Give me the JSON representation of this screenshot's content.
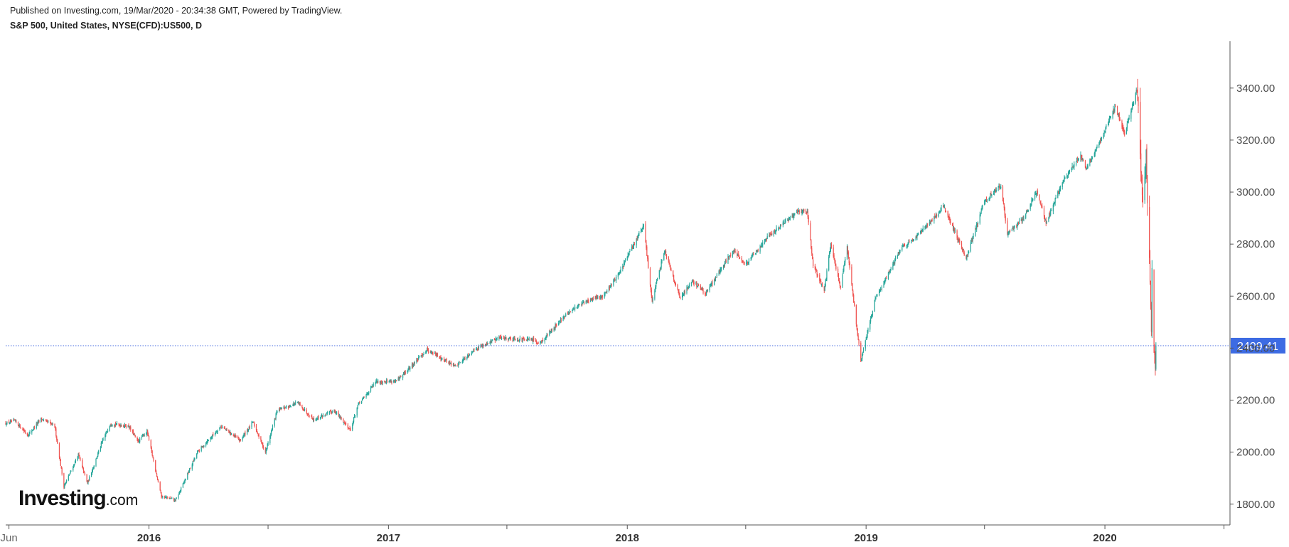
{
  "header": {
    "published": "Published on Investing.com, 19/Mar/2020 - 20:34:38 GMT, Powered by TradingView.",
    "symbol": "S&P 500, United States, NYSE(CFD):US500, D"
  },
  "logo": {
    "brand": "Investing",
    "tld": ".com"
  },
  "colors": {
    "up": "#26a69a",
    "down": "#ef5350",
    "last_price_line": "#4a6ee0",
    "last_price_badge": "#3d6be3",
    "axis": "#555555"
  },
  "chart_data": {
    "type": "candlestick",
    "title": "S&P 500, United States, NYSE(CFD):US500, D",
    "x_range": [
      "2015-05-27",
      "2020-07-08"
    ],
    "ylim": [
      1720,
      3580
    ],
    "y_ticks": [
      1800,
      2000,
      2200,
      2400,
      2600,
      2800,
      3000,
      3200,
      3400
    ],
    "y_tick_labels": [
      "1800.00",
      "2000.00",
      "2200.00",
      "2400.00",
      "2600.00",
      "2800.00",
      "3000.00",
      "3200.00",
      "3400.00"
    ],
    "x_ticks": [
      {
        "date": "2015-06-01",
        "label": "Jun",
        "kind": "month"
      },
      {
        "date": "2016-01-01",
        "label": "2016",
        "kind": "year"
      },
      {
        "date": "2016-07-01",
        "label": "",
        "kind": "minor"
      },
      {
        "date": "2017-01-01",
        "label": "2017",
        "kind": "year"
      },
      {
        "date": "2017-07-01",
        "label": "",
        "kind": "minor"
      },
      {
        "date": "2018-01-01",
        "label": "2018",
        "kind": "year"
      },
      {
        "date": "2018-07-01",
        "label": "",
        "kind": "minor"
      },
      {
        "date": "2019-01-01",
        "label": "2019",
        "kind": "year"
      },
      {
        "date": "2019-07-01",
        "label": "",
        "kind": "minor"
      },
      {
        "date": "2020-01-01",
        "label": "2020",
        "kind": "year"
      },
      {
        "date": "2020-07-01",
        "label": "",
        "kind": "minor"
      }
    ],
    "last_price": 2409.41,
    "last_price_label": "2409.41",
    "grid": false,
    "price_path": [
      [
        "2015-05-27",
        2110
      ],
      [
        "2015-06-10",
        2120
      ],
      [
        "2015-06-30",
        2065
      ],
      [
        "2015-07-20",
        2128
      ],
      [
        "2015-08-10",
        2100
      ],
      [
        "2015-08-24",
        1868
      ],
      [
        "2015-09-15",
        1990
      ],
      [
        "2015-09-29",
        1880
      ],
      [
        "2015-10-20",
        2030
      ],
      [
        "2015-11-03",
        2110
      ],
      [
        "2015-12-01",
        2100
      ],
      [
        "2015-12-15",
        2040
      ],
      [
        "2015-12-29",
        2080
      ],
      [
        "2016-01-20",
        1830
      ],
      [
        "2016-02-11",
        1815
      ],
      [
        "2016-03-15",
        2000
      ],
      [
        "2016-04-20",
        2100
      ],
      [
        "2016-05-19",
        2045
      ],
      [
        "2016-06-08",
        2115
      ],
      [
        "2016-06-27",
        2000
      ],
      [
        "2016-07-15",
        2160
      ],
      [
        "2016-08-15",
        2190
      ],
      [
        "2016-09-09",
        2125
      ],
      [
        "2016-10-10",
        2160
      ],
      [
        "2016-11-04",
        2085
      ],
      [
        "2016-11-15",
        2180
      ],
      [
        "2016-12-13",
        2270
      ],
      [
        "2017-01-15",
        2275
      ],
      [
        "2017-03-01",
        2395
      ],
      [
        "2017-04-13",
        2330
      ],
      [
        "2017-05-15",
        2400
      ],
      [
        "2017-06-20",
        2440
      ],
      [
        "2017-08-10",
        2430
      ],
      [
        "2017-08-21",
        2420
      ],
      [
        "2017-09-20",
        2505
      ],
      [
        "2017-10-20",
        2570
      ],
      [
        "2017-11-25",
        2600
      ],
      [
        "2017-12-20",
        2690
      ],
      [
        "2018-01-26",
        2872
      ],
      [
        "2018-02-08",
        2580
      ],
      [
        "2018-02-27",
        2780
      ],
      [
        "2018-03-23",
        2590
      ],
      [
        "2018-04-10",
        2660
      ],
      [
        "2018-05-01",
        2610
      ],
      [
        "2018-06-12",
        2780
      ],
      [
        "2018-07-01",
        2720
      ],
      [
        "2018-08-01",
        2820
      ],
      [
        "2018-09-20",
        2930
      ],
      [
        "2018-10-03",
        2925
      ],
      [
        "2018-10-12",
        2720
      ],
      [
        "2018-10-29",
        2620
      ],
      [
        "2018-11-08",
        2800
      ],
      [
        "2018-11-23",
        2630
      ],
      [
        "2018-12-03",
        2790
      ],
      [
        "2018-12-24",
        2350
      ],
      [
        "2019-01-15",
        2590
      ],
      [
        "2019-02-25",
        2790
      ],
      [
        "2019-03-20",
        2830
      ],
      [
        "2019-04-30",
        2945
      ],
      [
        "2019-06-03",
        2745
      ],
      [
        "2019-06-30",
        2960
      ],
      [
        "2019-07-26",
        3025
      ],
      [
        "2019-08-05",
        2840
      ],
      [
        "2019-08-30",
        2900
      ],
      [
        "2019-09-19",
        3005
      ],
      [
        "2019-10-03",
        2880
      ],
      [
        "2019-10-28",
        3040
      ],
      [
        "2019-11-25",
        3140
      ],
      [
        "2019-12-03",
        3090
      ],
      [
        "2019-12-31",
        3230
      ],
      [
        "2020-01-17",
        3330
      ],
      [
        "2020-01-31",
        3225
      ],
      [
        "2020-02-19",
        3393
      ],
      [
        "2020-02-28",
        2960
      ],
      [
        "2020-03-04",
        3130
      ],
      [
        "2020-03-12",
        2480
      ],
      [
        "2020-03-13",
        2710
      ],
      [
        "2020-03-16",
        2380
      ],
      [
        "2020-03-18",
        2320
      ],
      [
        "2020-03-19",
        2409
      ]
    ]
  }
}
